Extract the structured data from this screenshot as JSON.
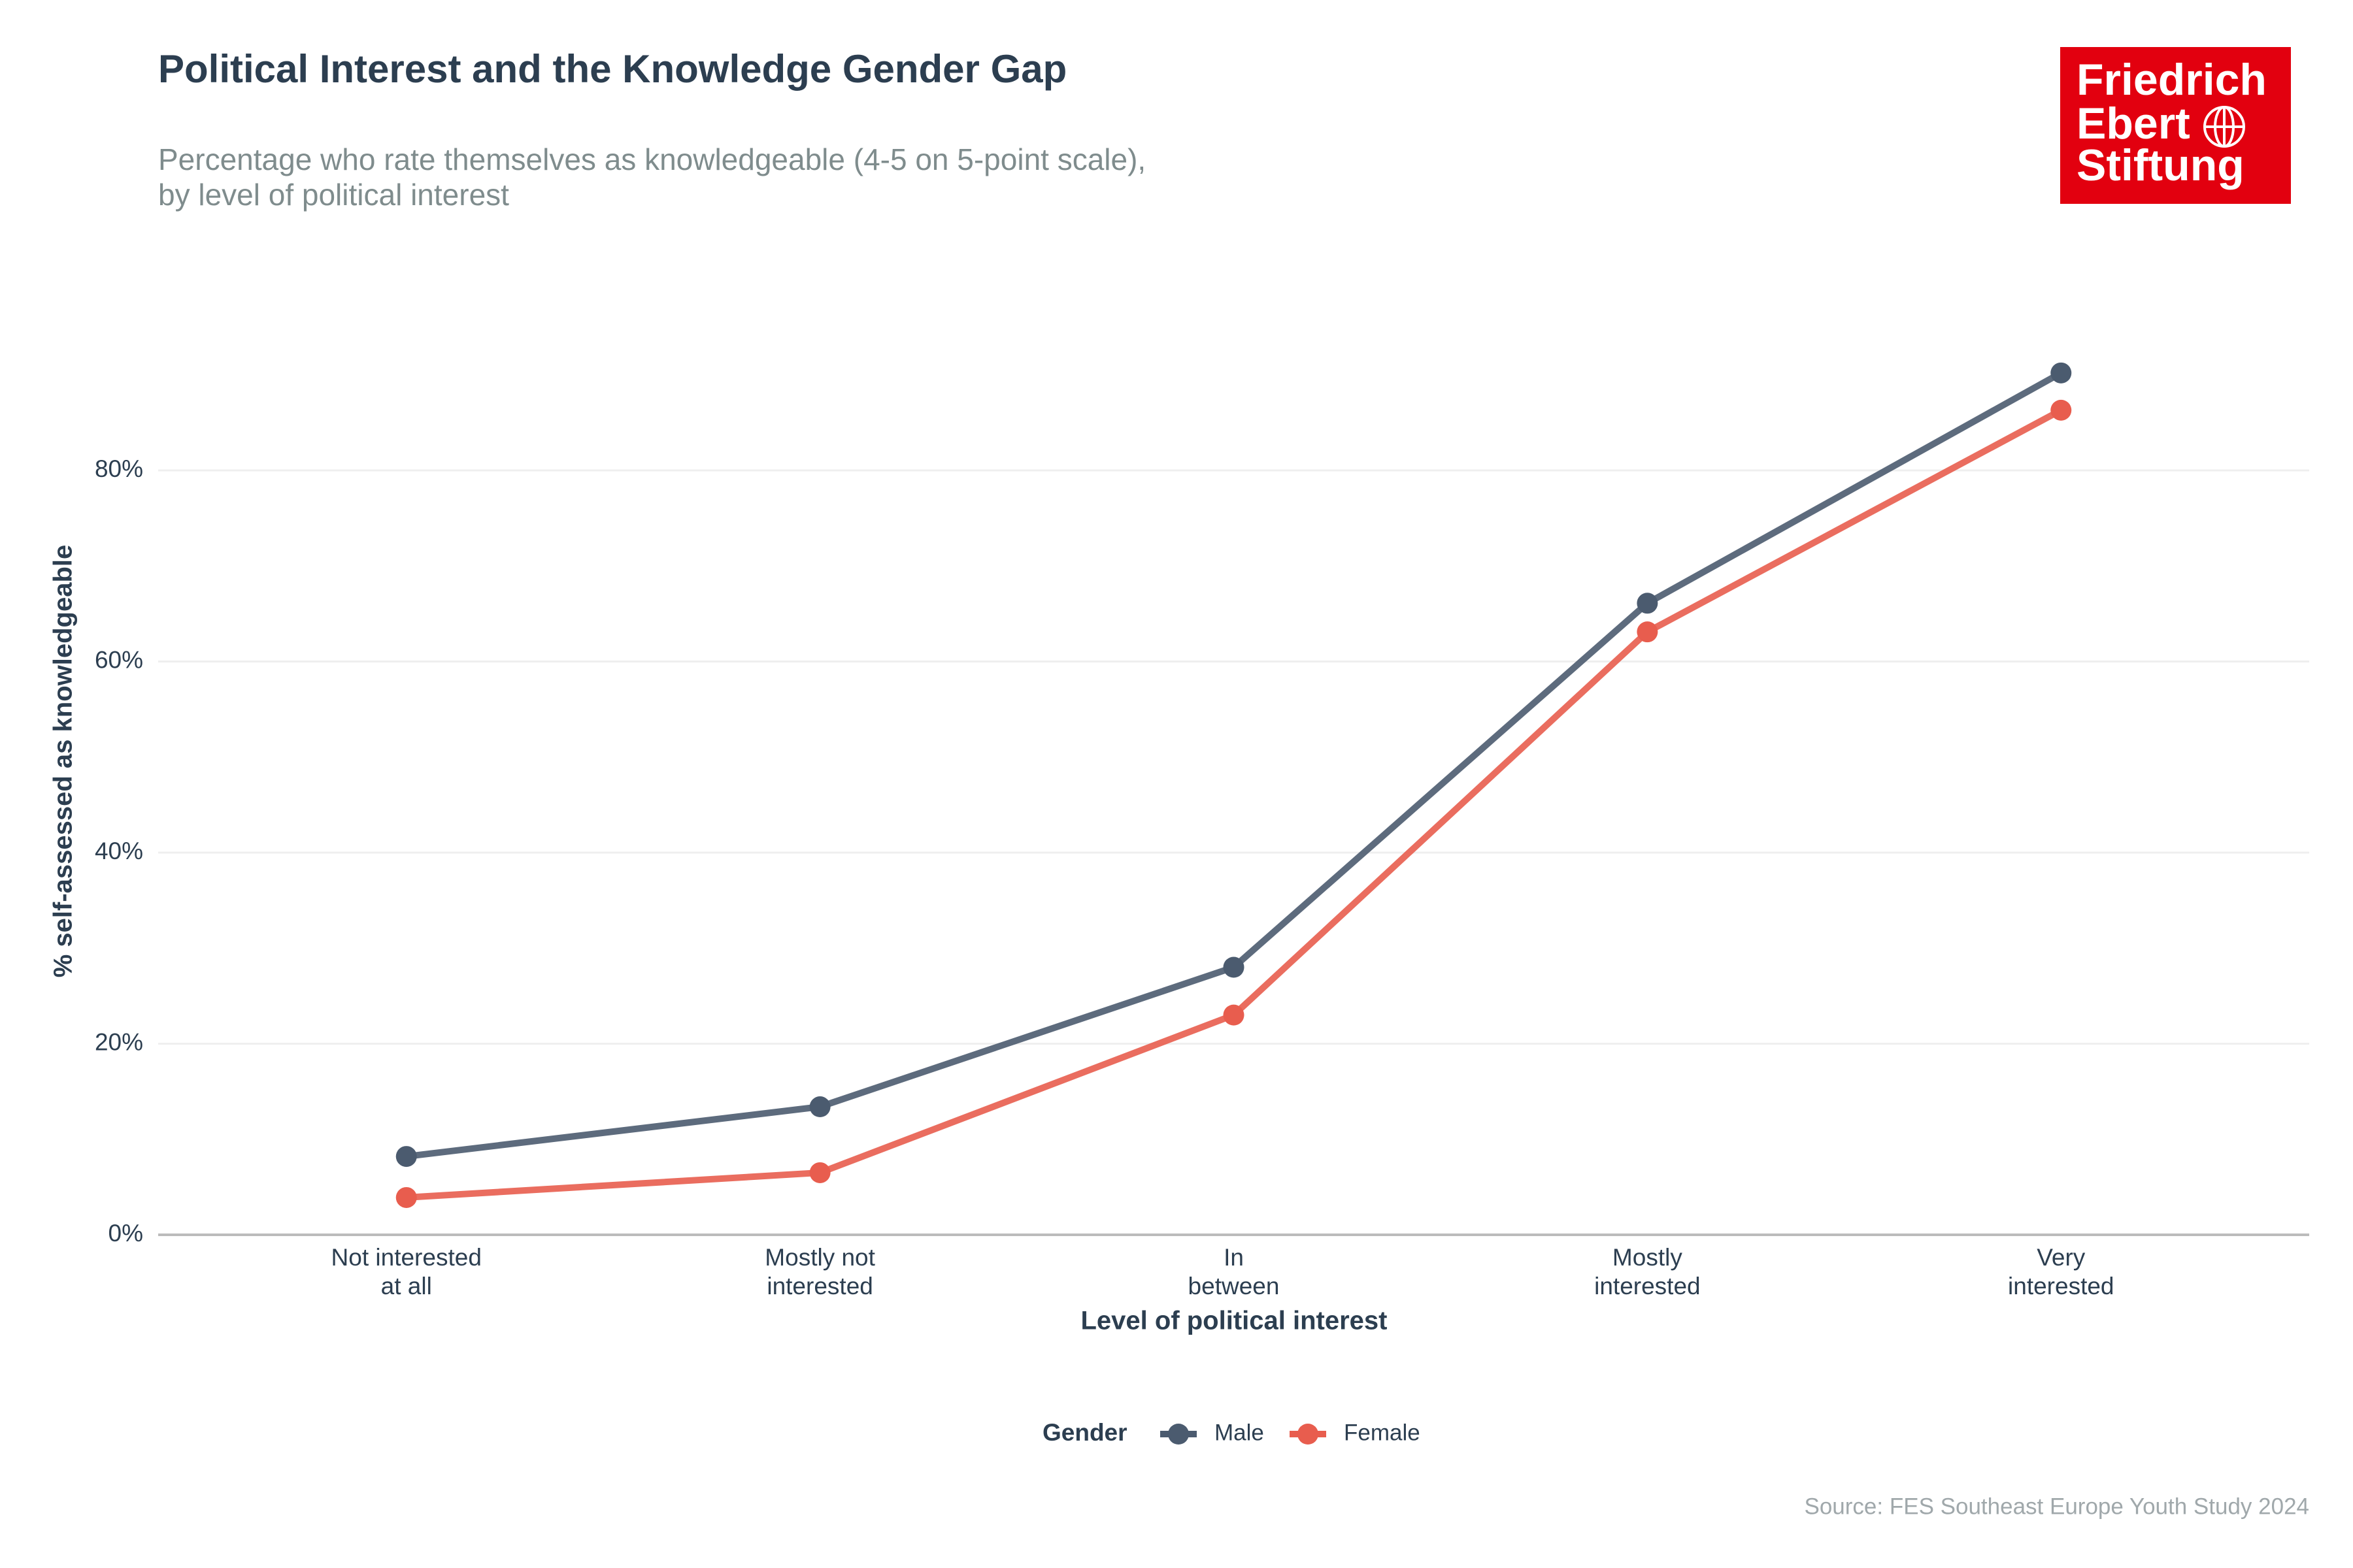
{
  "chart_data": {
    "type": "line",
    "title": "Political Interest and the Knowledge Gender Gap",
    "subtitle": [
      "Percentage who rate themselves as knowledgeable (4-5 on 5-point scale),",
      "by level of political interest"
    ],
    "x_label": "Level of political interest",
    "y_label": "% self-assessed as knowledgeable",
    "categories": [
      "Not interested\nat all",
      "Mostly not\ninterested",
      "In\nbetween",
      "Mostly\ninterested",
      "Very\ninterested"
    ],
    "series": [
      {
        "name": "Male",
        "color": "#4b5b6f",
        "values": [
          8.2,
          13.4,
          28.0,
          66.1,
          90.2
        ]
      },
      {
        "name": "Female",
        "color": "#e85d4e",
        "values": [
          3.9,
          6.5,
          23.0,
          63.1,
          86.3
        ]
      }
    ],
    "ylim": [
      0,
      94
    ],
    "yticks": [
      {
        "value": 0,
        "label": "0%"
      },
      {
        "value": 20,
        "label": "20%"
      },
      {
        "value": 40,
        "label": "40%"
      },
      {
        "value": 60,
        "label": "60%"
      },
      {
        "value": 80,
        "label": "80%"
      }
    ],
    "grid": true,
    "legend_title": "Gender",
    "legend_position": "bottom",
    "source": "Source: FES Southeast Europe Youth Study 2024",
    "logo": [
      "Friedrich",
      "Ebert",
      "Stiftung"
    ]
  }
}
